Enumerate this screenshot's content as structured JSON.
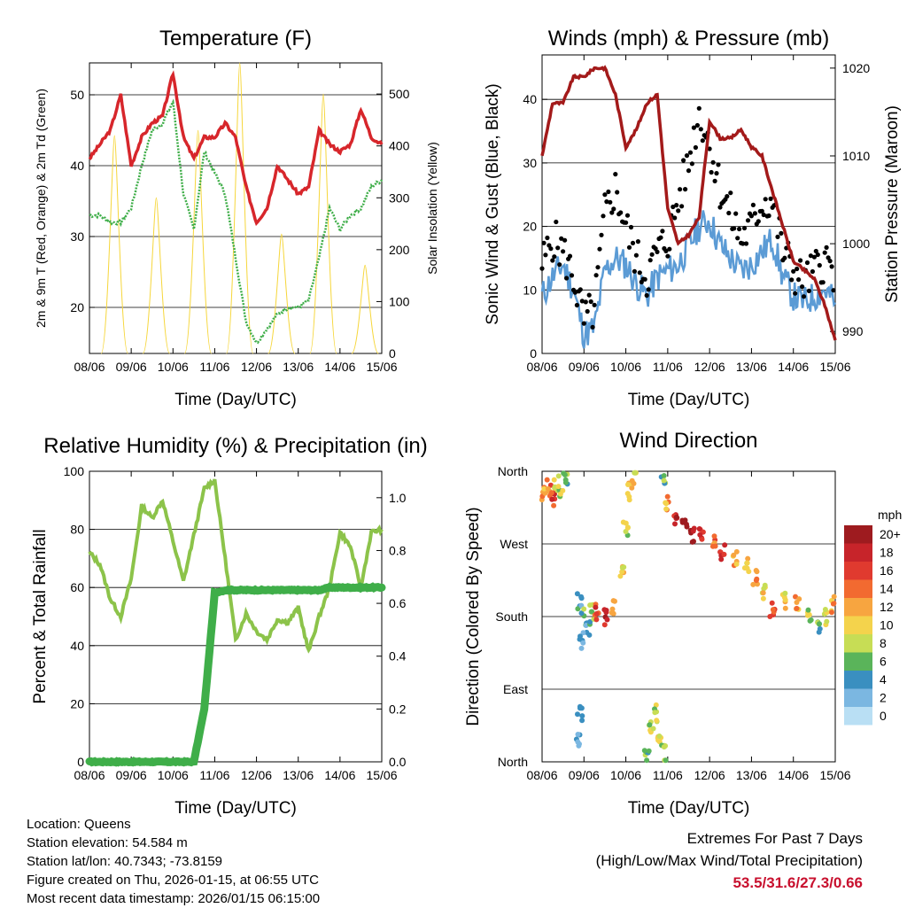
{
  "colors": {
    "temp_red": "#d7262b",
    "dew_green": "#3fae49",
    "solar_yellow": "#f6d63a",
    "wind_blue": "#5b9bd5",
    "gust_black": "#000000",
    "pressure_maroon": "#a31a1a",
    "rh_lightgreen": "#8cc34a",
    "precip_green": "#3fae49",
    "extremes_red": "#c8102e"
  },
  "x_ticks": [
    "08/06",
    "09/06",
    "10/06",
    "11/06",
    "12/06",
    "13/06",
    "14/06",
    "15/06"
  ],
  "xlabel": "Time (Day/UTC)",
  "chart_data": [
    {
      "id": "temperature",
      "type": "line",
      "title": "Temperature (F)",
      "xlabel": "Time (Day/UTC)",
      "ylabel": "2m & 9m T (Red, Orange) & 2m Td (Green)",
      "y2label": "Solar Insolation (Yellow)",
      "ylim": [
        13.5,
        54.5
      ],
      "yticks": [
        20,
        30,
        40,
        50
      ],
      "y2lim": [
        0,
        560
      ],
      "y2ticks": [
        0,
        100,
        200,
        300,
        400,
        500
      ],
      "x": [
        0,
        0.25,
        0.5,
        0.75,
        1.0,
        1.25,
        1.5,
        1.75,
        2.0,
        2.25,
        2.5,
        2.75,
        3.0,
        3.25,
        3.5,
        3.75,
        4.0,
        4.25,
        4.5,
        4.75,
        5.0,
        5.25,
        5.5,
        5.75,
        6.0,
        6.25,
        6.5,
        6.75,
        7.0
      ],
      "series": [
        {
          "name": "2m T",
          "color": "#d7262b",
          "values": [
            41,
            43,
            45,
            50,
            40,
            44,
            46,
            47,
            53,
            44,
            41,
            44,
            44,
            46,
            44,
            37,
            32,
            34,
            40,
            38,
            36,
            37,
            45,
            43,
            42,
            43,
            48,
            44,
            43
          ]
        },
        {
          "name": "2m Td",
          "color": "#3fae49",
          "values": [
            33,
            33,
            32,
            32,
            34,
            40,
            45,
            46,
            49,
            36,
            31,
            42,
            39,
            36,
            27,
            18,
            15,
            17,
            19,
            20,
            20,
            21,
            27,
            34,
            31,
            33,
            34,
            37,
            38
          ]
        }
      ],
      "solar": {
        "name": "Solar Insolation",
        "color": "#f6d63a",
        "days_peaks": [
          [
            0.6,
            420
          ],
          [
            1.6,
            300
          ],
          [
            2.6,
            430
          ],
          [
            3.6,
            560
          ],
          [
            4.6,
            230
          ],
          [
            5.6,
            500
          ],
          [
            6.6,
            170
          ]
        ]
      }
    },
    {
      "id": "winds",
      "type": "scatter",
      "title": "Winds (mph) & Pressure (mb)",
      "xlabel": "Time (Day/UTC)",
      "ylabel": "Sonic Wind & Gust (Blue, Black)",
      "y2label": "Station Pressure (Maroon)",
      "ylim": [
        0,
        47
      ],
      "yticks": [
        0,
        10,
        20,
        30,
        40
      ],
      "y2lim": [
        987.5,
        1021.5
      ],
      "y2ticks": [
        990,
        1000,
        1010,
        1020
      ],
      "x": [
        0,
        0.25,
        0.5,
        0.75,
        1.0,
        1.25,
        1.5,
        1.75,
        2.0,
        2.25,
        2.5,
        2.75,
        3.0,
        3.25,
        3.5,
        3.75,
        4.0,
        4.25,
        4.5,
        4.75,
        5.0,
        5.25,
        5.5,
        5.75,
        6.0,
        6.25,
        6.5,
        6.75,
        7.0
      ],
      "series": [
        {
          "name": "Sonic Wind",
          "color": "#5b9bd5",
          "values": [
            9,
            12,
            14,
            10,
            3,
            4,
            13,
            15,
            14,
            11,
            9,
            12,
            13,
            14,
            17,
            20,
            21,
            17,
            15,
            13,
            14,
            16,
            18,
            12,
            9,
            8,
            9,
            10,
            8
          ]
        },
        {
          "name": "Gust",
          "color": "#000000",
          "values": [
            14,
            18,
            16,
            12,
            5,
            7,
            22,
            26,
            20,
            15,
            12,
            16,
            18,
            24,
            30,
            38,
            33,
            26,
            22,
            18,
            20,
            24,
            24,
            16,
            13,
            11,
            13,
            15,
            12
          ]
        },
        {
          "name": "Station Pressure",
          "color": "#a31a1a",
          "values": [
            1010,
            1016,
            1016,
            1019,
            1019,
            1020,
            1020,
            1017,
            1011,
            1013,
            1016,
            1017,
            1004,
            1000,
            1001,
            1003,
            1014,
            1012,
            1012,
            1013,
            1011,
            1010,
            1006,
            1002,
            998,
            997,
            996,
            993,
            989
          ]
        }
      ]
    },
    {
      "id": "humidity",
      "type": "line",
      "title": "Relative Humidity (%) & Precipitation (in)",
      "xlabel": "Time (Day/UTC)",
      "ylabel": "Percent & Total Rainfall",
      "ylim": [
        0,
        100
      ],
      "yticks": [
        0,
        20,
        40,
        60,
        80,
        100
      ],
      "y2lim": [
        0,
        1.1
      ],
      "y2ticks": [
        0.0,
        0.2,
        0.4,
        0.6,
        0.8,
        1.0
      ],
      "x": [
        0,
        0.25,
        0.5,
        0.75,
        1.0,
        1.25,
        1.5,
        1.75,
        2.0,
        2.25,
        2.5,
        2.75,
        3.0,
        3.25,
        3.5,
        3.75,
        4.0,
        4.25,
        4.5,
        4.75,
        5.0,
        5.25,
        5.5,
        5.75,
        6.0,
        6.25,
        6.5,
        6.75,
        7.0
      ],
      "series": [
        {
          "name": "Relative Humidity",
          "color": "#8cc34a",
          "values": [
            72,
            68,
            56,
            50,
            63,
            88,
            84,
            90,
            76,
            62,
            78,
            94,
            97,
            70,
            42,
            51,
            45,
            42,
            49,
            48,
            53,
            38,
            50,
            60,
            79,
            74,
            60,
            79,
            80
          ]
        },
        {
          "name": "Total Rainfall",
          "color": "#3fae49",
          "values": [
            0,
            0,
            0,
            0,
            0,
            0,
            0,
            0,
            0,
            0,
            0,
            0.2,
            0.64,
            0.65,
            0.65,
            0.65,
            0.65,
            0.65,
            0.65,
            0.65,
            0.65,
            0.65,
            0.65,
            0.66,
            0.66,
            0.66,
            0.66,
            0.66,
            0.66
          ]
        }
      ]
    },
    {
      "id": "direction",
      "type": "scatter",
      "title": "Wind Direction",
      "xlabel": "Time (Day/UTC)",
      "ylabel": "Direction (Colored By Speed)",
      "yticks": [
        "North",
        "East",
        "South",
        "West",
        "North"
      ],
      "ylim": [
        0,
        360
      ],
      "legend_title": "mph",
      "legend_labels": [
        "20+",
        "18",
        "16",
        "14",
        "12",
        "10",
        "8",
        "6",
        "4",
        "2",
        "0"
      ],
      "legend_colors": [
        "#9e1b1f",
        "#c7242a",
        "#e03a2f",
        "#f26a30",
        "#f7a540",
        "#f4d34c",
        "#c7dd55",
        "#5ab45a",
        "#3a8fc0",
        "#7bb7e1",
        "#b9dff4"
      ],
      "points": [
        [
          0.05,
          330,
          12
        ],
        [
          0.15,
          340,
          14
        ],
        [
          0.25,
          325,
          16
        ],
        [
          0.35,
          345,
          10
        ],
        [
          0.45,
          335,
          8
        ],
        [
          0.55,
          350,
          6
        ],
        [
          0.9,
          200,
          4
        ],
        [
          1.0,
          180,
          6
        ],
        [
          1.1,
          165,
          4
        ],
        [
          0.95,
          150,
          3
        ],
        [
          1.2,
          185,
          8
        ],
        [
          0.85,
          30,
          3
        ],
        [
          0.9,
          60,
          4
        ],
        [
          1.3,
          185,
          16
        ],
        [
          1.5,
          180,
          18
        ],
        [
          1.7,
          190,
          12
        ],
        [
          1.9,
          240,
          10
        ],
        [
          2.0,
          290,
          8
        ],
        [
          2.1,
          335,
          10
        ],
        [
          2.2,
          355,
          10
        ],
        [
          2.5,
          5,
          6
        ],
        [
          2.6,
          40,
          8
        ],
        [
          2.7,
          60,
          8
        ],
        [
          2.8,
          30,
          10
        ],
        [
          2.9,
          10,
          8
        ],
        [
          2.9,
          350,
          6
        ],
        [
          3.0,
          320,
          12
        ],
        [
          3.2,
          300,
          18
        ],
        [
          3.4,
          290,
          20
        ],
        [
          3.6,
          280,
          20
        ],
        [
          3.8,
          280,
          16
        ],
        [
          4.1,
          270,
          14
        ],
        [
          4.3,
          260,
          16
        ],
        [
          4.6,
          250,
          12
        ],
        [
          4.9,
          245,
          10
        ],
        [
          5.1,
          230,
          12
        ],
        [
          5.3,
          210,
          10
        ],
        [
          5.5,
          190,
          16
        ],
        [
          5.8,
          200,
          10
        ],
        [
          6.1,
          195,
          12
        ],
        [
          6.4,
          180,
          8
        ],
        [
          6.6,
          165,
          6
        ],
        [
          6.8,
          180,
          10
        ],
        [
          6.95,
          195,
          12
        ]
      ]
    }
  ],
  "footer": {
    "location": "Location: Queens",
    "elevation": "Station elevation: 54.584 m",
    "latlon": "Station lat/lon: 40.7343; -73.8159",
    "created": "Figure created on Thu, 2026-01-15, at 06:55 UTC",
    "recent": "Most recent data timestamp: 2026/01/15 06:15:00",
    "extremes_title": "Extremes For Past 7 Days",
    "extremes_sub": "(High/Low/Max Wind/Total Precipitation)",
    "extremes_values": "53.5/31.6/27.3/0.66"
  }
}
